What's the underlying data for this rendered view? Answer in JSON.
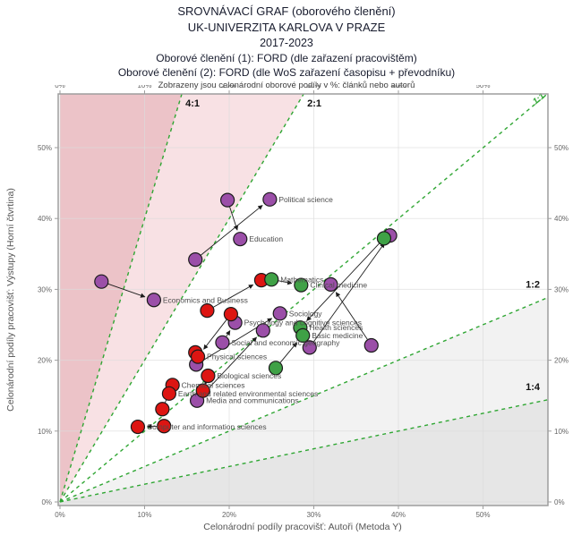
{
  "header": {
    "line1": "SROVNÁVACÍ GRAF (oborového členění)",
    "line2": "UK-UNIVERZITA KARLOVA V PRAZE",
    "line3": "2017-2023",
    "line4": "Oborové členění (1): FORD (dle zařazení pracovištěm)",
    "line5": "Oborové členění (2): FORD (dle WoS zařazení časopisu + převodníku)",
    "line6": "Zobrazeny jsou celonárodní oborové podíly v %: článků nebo autorů"
  },
  "chart_data": {
    "type": "scatter",
    "xlabel": "Celonárodní podíly pracovišť: Autoři (Metoda Y)",
    "ylabel": "Celonárodní podíly pracovišť: Výstupy (Horní čtvrtina)",
    "xlim": [
      0,
      58
    ],
    "ylim": [
      0,
      58
    ],
    "grid": true,
    "ticks": [
      0,
      10,
      20,
      30,
      40,
      50
    ],
    "tick_labels": [
      "0%",
      "10%",
      "20%",
      "30%",
      "40%",
      "50%"
    ],
    "ratio_lines": [
      {
        "label": "4:1",
        "slope": 4
      },
      {
        "label": "2:1",
        "slope": 2
      },
      {
        "label": "1:1",
        "slope": 1
      },
      {
        "label": "1:2",
        "slope": 0.5
      },
      {
        "label": "1:4",
        "slope": 0.25
      }
    ],
    "colors": {
      "red": "#dd1512",
      "green": "#3fa146",
      "purple": "#9b4fa8",
      "point_outline": "#1a1a1a",
      "ratio_line_green": "#2fa633",
      "region_dark_pink": "#ecc3c8",
      "region_light_pink": "#f8e1e4",
      "region_light_gray": "#f2f2f2",
      "region_gray": "#e6e6e6",
      "grid_gray": "#dcdcdc",
      "frame_gray": "#9e9e9e",
      "arrow_black": "#1c1c1c",
      "ratio_label_black": "#111111"
    },
    "points": [
      {
        "id": "p1",
        "x": 4.9,
        "y": 31.1,
        "color": "purple",
        "label": ""
      },
      {
        "id": "p2",
        "x": 11.1,
        "y": 28.5,
        "color": "purple",
        "label": "Economics and Business"
      },
      {
        "id": "p3",
        "x": 16.0,
        "y": 34.2,
        "color": "purple",
        "label": ""
      },
      {
        "id": "p4",
        "x": 24.8,
        "y": 42.7,
        "color": "purple",
        "label": "Political science"
      },
      {
        "id": "p5",
        "x": 19.8,
        "y": 42.6,
        "color": "purple",
        "label": ""
      },
      {
        "id": "p6",
        "x": 21.3,
        "y": 37.1,
        "color": "purple",
        "label": "Education"
      },
      {
        "id": "p7",
        "x": 26.0,
        "y": 26.6,
        "color": "purple",
        "label": "Sociology"
      },
      {
        "id": "p8",
        "x": 24.0,
        "y": 24.2,
        "color": "purple",
        "label": ""
      },
      {
        "id": "p9",
        "x": 20.7,
        "y": 25.3,
        "color": "purple",
        "label": "Psychology and cognitive sciences"
      },
      {
        "id": "p10",
        "x": 19.2,
        "y": 22.5,
        "color": "purple",
        "label": "Social and economic geography"
      },
      {
        "id": "p11",
        "x": 16.1,
        "y": 19.4,
        "color": "purple",
        "label": ""
      },
      {
        "id": "p12",
        "x": 29.5,
        "y": 21.8,
        "color": "purple",
        "label": ""
      },
      {
        "id": "p13",
        "x": 32.0,
        "y": 30.7,
        "color": "purple",
        "label": ""
      },
      {
        "id": "p14",
        "x": 36.8,
        "y": 22.1,
        "color": "purple",
        "label": ""
      },
      {
        "id": "p15",
        "x": 39.0,
        "y": 37.6,
        "color": "purple",
        "label": ""
      },
      {
        "id": "p16",
        "x": 16.2,
        "y": 14.3,
        "color": "purple",
        "label": "Media and communications"
      },
      {
        "id": "p17",
        "x": 17.4,
        "y": 27.0,
        "color": "red",
        "label": ""
      },
      {
        "id": "p18",
        "x": 23.8,
        "y": 31.3,
        "color": "red",
        "label": ""
      },
      {
        "id": "p19",
        "x": 20.2,
        "y": 26.5,
        "color": "red",
        "label": ""
      },
      {
        "id": "p20",
        "x": 16.0,
        "y": 21.1,
        "color": "red",
        "label": ""
      },
      {
        "id": "p21",
        "x": 16.3,
        "y": 20.5,
        "color": "red",
        "label": "Physical sciences"
      },
      {
        "id": "p22",
        "x": 17.5,
        "y": 17.8,
        "color": "red",
        "label": "Biological sciences"
      },
      {
        "id": "p23",
        "x": 16.9,
        "y": 15.7,
        "color": "red",
        "label": ""
      },
      {
        "id": "p24",
        "x": 13.3,
        "y": 16.5,
        "color": "red",
        "label": "Chemical sciences"
      },
      {
        "id": "p25",
        "x": 12.9,
        "y": 15.3,
        "color": "red",
        "label": "Earth and related environmental sciences"
      },
      {
        "id": "p26",
        "x": 12.1,
        "y": 13.1,
        "color": "red",
        "label": ""
      },
      {
        "id": "p27",
        "x": 9.2,
        "y": 10.6,
        "color": "red",
        "label": "Computer and information sciences"
      },
      {
        "id": "p28",
        "x": 12.3,
        "y": 10.7,
        "color": "red",
        "label": ""
      },
      {
        "id": "p29",
        "x": 25.0,
        "y": 31.4,
        "color": "green",
        "label": "Mathematics"
      },
      {
        "id": "p30",
        "x": 28.5,
        "y": 30.6,
        "color": "green",
        "label": "Clinical medicine"
      },
      {
        "id": "p31",
        "x": 38.3,
        "y": 37.2,
        "color": "green",
        "label": ""
      },
      {
        "id": "p32",
        "x": 28.4,
        "y": 24.6,
        "color": "green",
        "label": "Health sciences"
      },
      {
        "id": "p33",
        "x": 28.7,
        "y": 23.5,
        "color": "green",
        "label": "Basic medicine"
      },
      {
        "id": "p34",
        "x": 25.5,
        "y": 18.9,
        "color": "green",
        "label": ""
      }
    ],
    "arrows": [
      {
        "from": "p1",
        "to": "p2"
      },
      {
        "from": "p3",
        "to": "p4"
      },
      {
        "from": "p5",
        "to": "p6"
      },
      {
        "from": "p17",
        "to": "p18"
      },
      {
        "from": "p29",
        "to": "p30"
      },
      {
        "from": "p31",
        "to": "p32"
      },
      {
        "from": "p12",
        "to": "p15"
      },
      {
        "from": "p14",
        "to": "p13"
      },
      {
        "from": "p34",
        "to": "p33"
      },
      {
        "from": "p19",
        "to": "p21"
      },
      {
        "from": "p11",
        "to": "p7"
      },
      {
        "from": "p10",
        "to": "p9"
      },
      {
        "from": "p16",
        "to": "p8"
      },
      {
        "from": "p23",
        "to": "p22"
      },
      {
        "from": "p26",
        "to": "p24"
      },
      {
        "from": "p28",
        "to": "p27"
      }
    ]
  }
}
